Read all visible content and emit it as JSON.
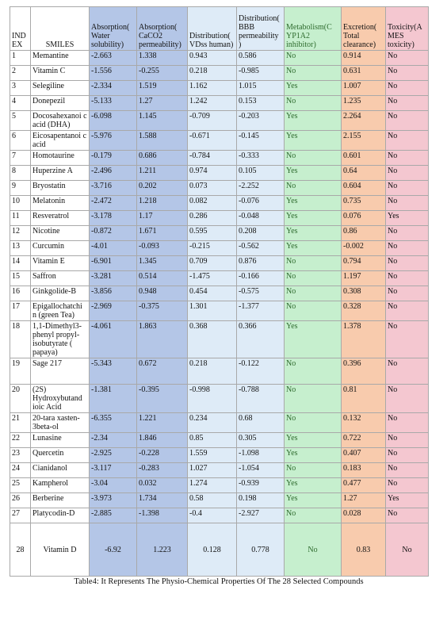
{
  "table": {
    "headers": [
      "IND EX",
      "SMILES",
      "Absorption( Water solubility)",
      "Absorption( CaCO2 permeability)",
      "Distribution( VDss human)",
      "Distribution( BBB permeability )",
      "Metabolism(C YP1A2 inhibitor)",
      "Excretion( Total clearance)",
      "Toxicity(A MES toxicity)"
    ],
    "rows": [
      [
        "1",
        "Memantine",
        "-2.663",
        "1.338",
        "0.943",
        "0.586",
        "No",
        "0.914",
        "No"
      ],
      [
        "2",
        "Vitamin C",
        "-1.556",
        "-0.255",
        "0.218",
        "-0.985",
        "No",
        "0.631",
        "No"
      ],
      [
        "3",
        "Selegiline",
        "-2.334",
        "1.519",
        "1.162",
        "1.015",
        "Yes",
        "1.007",
        "No"
      ],
      [
        "4",
        "Donepezil",
        "-5.133",
        "1.27",
        "1.242",
        "0.153",
        "No",
        "1.235",
        "No"
      ],
      [
        "5",
        "Docosahexanoi c acid (DHA)",
        "-6.098",
        "1.145",
        "-0.709",
        "-0.203",
        "Yes",
        "2.264",
        "No"
      ],
      [
        "6",
        "Eicosapentanoi c acid",
        "-5.976",
        "1.588",
        "-0.671",
        "-0.145",
        "Yes",
        "2.155",
        "No"
      ],
      [
        "7",
        "Homotaurine",
        "-0.179",
        "0.686",
        "-0.784",
        "-0.333",
        "No",
        "0.601",
        "No"
      ],
      [
        "8",
        "Huperzine A",
        "-2.496",
        "1.211",
        "0.974",
        "0.105",
        "Yes",
        "0.64",
        "No"
      ],
      [
        "9",
        "Bryostatin",
        "-3.716",
        "0.202",
        "0.073",
        "-2.252",
        "No",
        "0.604",
        "No"
      ],
      [
        "10",
        "Melatonin",
        "-2.472",
        "1.218",
        "0.082",
        "-0.076",
        "Yes",
        "0.735",
        "No"
      ],
      [
        "11",
        "Resveratrol",
        "-3.178",
        "1.17",
        "0.286",
        "-0.048",
        "Yes",
        "0.076",
        "Yes"
      ],
      [
        "12",
        "Nicotine",
        "-0.872",
        "1.671",
        "0.595",
        "0.208",
        "Yes",
        "0.86",
        "No"
      ],
      [
        "13",
        "Curcumin",
        "-4.01",
        "-0.093",
        "-0.215",
        "-0.562",
        "Yes",
        "-0.002",
        "No"
      ],
      [
        "14",
        "Vitamin E",
        "-6.901",
        "1.345",
        "0.709",
        "0.876",
        "No",
        "0.794",
        "No"
      ],
      [
        "15",
        "Saffron",
        "-3.281",
        "0.514",
        "-1.475",
        "-0.166",
        "No",
        "1.197",
        "No"
      ],
      [
        "16",
        "Ginkgolide-B",
        "-3.856",
        "0.948",
        "0.454",
        "-0.575",
        "No",
        "0.308",
        "No"
      ],
      [
        "17",
        "Epigallochatchi n (green Tea)",
        "-2.969",
        "-0.375",
        "1.301",
        "-1.377",
        "No",
        "0.328",
        "No"
      ],
      [
        "18",
        "1,1-Dimethyl3-phenyl propyl-isobutyrate ( papaya)",
        "-4.061",
        "1.863",
        "0.368",
        "0.366",
        "Yes",
        "1.378",
        "No"
      ],
      [
        "19",
        "Sage 217",
        "-5.343",
        "0.672",
        "0.218",
        "-0.122",
        "No",
        "0.396",
        "No"
      ],
      [
        "20",
        "(2S) Hydroxybutand ioic Acid",
        "-1.381",
        "-0.395",
        "-0.998",
        "-0.788",
        "No",
        "0.81",
        "No"
      ],
      [
        "21",
        "20-tara xasten-3beta-ol",
        "-6.355",
        "1.221",
        "0.234",
        "0.68",
        "No",
        "0.132",
        "No"
      ],
      [
        "22",
        "Lunasine",
        "-2.34",
        "1.846",
        "0.85",
        "0.305",
        "Yes",
        "0.722",
        "No"
      ],
      [
        "23",
        "Quercetin",
        "-2.925",
        "-0.228",
        "1.559",
        "-1.098",
        "Yes",
        "0.407",
        "No"
      ],
      [
        "24",
        "Cianidanol",
        "-3.117",
        "-0.283",
        "1.027",
        "-1.054",
        "No",
        "0.183",
        "No"
      ],
      [
        "25",
        "Kampherol",
        "-3.04",
        "0.032",
        "1.274",
        "-0.939",
        "Yes",
        "0.477",
        "No"
      ],
      [
        "26",
        "Berberine",
        "-3.973",
        "1.734",
        "0.58",
        "0.198",
        "Yes",
        "1.27",
        "Yes"
      ],
      [
        "27",
        "Platycodin-D",
        "-2.885",
        "-1.398",
        "-0.4",
        "-2.927",
        "No",
        "0.028",
        "No"
      ],
      [
        "28",
        "Vitamin D",
        "-6.92",
        "1.223",
        "0.128",
        "0.778",
        "No",
        "0.83",
        "No"
      ]
    ],
    "caption": "Table4: It Represents The Physio-Chemical Properties Of The 28 Selected Compounds"
  }
}
